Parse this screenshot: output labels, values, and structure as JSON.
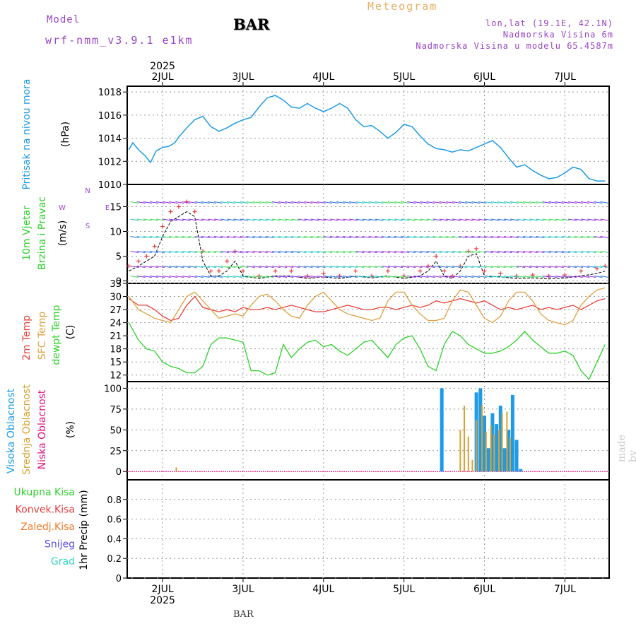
{
  "header": {
    "model_label": "Model",
    "run_label": "wrf-nmm_v3.9.1 e1km",
    "station": "BAR",
    "title": "Meteogram",
    "coords": "lon,lat (19.1E, 42.1N)",
    "elevation": "Nadmorska Visina 6m",
    "model_elevation": "Nadmorska Visina u modelu 65.4587m"
  },
  "footer_station": "BAR",
  "watermark": "made by Angel",
  "year_label": "2025",
  "colors": {
    "pressure": "#1e9be6",
    "temp2m": "#e8413c",
    "sfc_temp": "#e0a040",
    "dewpt": "#2ed12a",
    "high_cloud": "#1e9be6",
    "mid_cloud": "#d9a030",
    "low_cloud": "#e0117f",
    "gust": "#e83c3c",
    "wind_black": "#000000"
  },
  "chart_data": [
    {
      "type": "line",
      "name": "pressure",
      "ylabel": [
        "Pritisak na nivou mora",
        "(hPa)"
      ],
      "ylim": [
        1010,
        1018.5
      ],
      "yticks": [
        1010,
        1012,
        1014,
        1016,
        1018
      ],
      "x_days": [
        1.58,
        1.63,
        1.7,
        1.78,
        1.85,
        1.92,
        2.0,
        2.08,
        2.15,
        2.2,
        2.3,
        2.4,
        2.5,
        2.6,
        2.7,
        2.8,
        2.9,
        3.0,
        3.1,
        3.2,
        3.3,
        3.4,
        3.5,
        3.6,
        3.7,
        3.8,
        3.9,
        4.0,
        4.1,
        4.2,
        4.3,
        4.4,
        4.5,
        4.6,
        4.7,
        4.8,
        4.9,
        5.0,
        5.1,
        5.2,
        5.3,
        5.4,
        5.5,
        5.6,
        5.7,
        5.8,
        5.9,
        6.0,
        6.1,
        6.2,
        6.3,
        6.4,
        6.5,
        6.6,
        6.7,
        6.8,
        6.9,
        7.0,
        7.1,
        7.2,
        7.3,
        7.4,
        7.5
      ],
      "values": [
        1013.0,
        1013.6,
        1013.0,
        1012.5,
        1011.9,
        1012.9,
        1013.2,
        1013.3,
        1013.6,
        1014.1,
        1014.9,
        1015.6,
        1015.9,
        1015.0,
        1014.6,
        1014.9,
        1015.3,
        1015.6,
        1015.8,
        1016.7,
        1017.5,
        1017.7,
        1017.3,
        1016.7,
        1016.6,
        1017.0,
        1016.6,
        1016.3,
        1016.6,
        1017.0,
        1016.6,
        1015.6,
        1015.0,
        1015.1,
        1014.6,
        1014.0,
        1014.5,
        1015.2,
        1015.0,
        1014.2,
        1013.5,
        1013.1,
        1013.0,
        1012.8,
        1013.0,
        1012.9,
        1013.2,
        1013.5,
        1013.8,
        1013.2,
        1012.3,
        1011.5,
        1011.7,
        1011.2,
        1010.8,
        1010.5,
        1010.6,
        1011.0,
        1011.5,
        1011.3,
        1010.5,
        1010.3,
        1010.3
      ]
    },
    {
      "type": "line",
      "name": "wind",
      "ylabel": [
        "10m Vjetar",
        "Brzina i Pravac",
        "(m/s)"
      ],
      "compass": [
        "N",
        "E",
        "S",
        "W"
      ],
      "ylim": [
        -0.5,
        19.5
      ],
      "yticks": [
        0,
        5,
        10,
        15
      ],
      "series": [
        {
          "name": "speed",
          "x": [
            1.58,
            1.7,
            1.8,
            1.9,
            2.0,
            2.1,
            2.2,
            2.3,
            2.4,
            2.5,
            2.6,
            2.7,
            2.8,
            2.9,
            3.0,
            3.2,
            3.4,
            3.6,
            3.8,
            4.0,
            4.2,
            4.4,
            4.6,
            4.8,
            5.0,
            5.2,
            5.3,
            5.4,
            5.5,
            5.6,
            5.7,
            5.8,
            5.9,
            6.0,
            6.2,
            6.4,
            6.6,
            6.8,
            7.0,
            7.2,
            7.4,
            7.5
          ],
          "values": [
            2,
            3,
            4,
            5,
            9,
            12,
            13,
            14,
            13,
            4,
            1,
            1,
            2,
            4,
            1,
            0.5,
            1,
            1,
            0.5,
            0.8,
            0.5,
            1,
            0.6,
            1,
            0.5,
            1,
            2,
            4,
            1,
            0.5,
            2,
            5,
            5.5,
            1,
            0.8,
            0.5,
            0.6,
            0.4,
            0.6,
            1,
            1.5,
            2
          ]
        },
        {
          "name": "gust",
          "x": [
            1.58,
            1.7,
            1.8,
            1.9,
            2.0,
            2.1,
            2.2,
            2.3,
            2.4,
            2.5,
            2.6,
            2.7,
            2.8,
            2.9,
            3.0,
            3.2,
            3.4,
            3.6,
            3.8,
            4.0,
            4.2,
            4.4,
            4.6,
            4.8,
            5.0,
            5.2,
            5.3,
            5.4,
            5.5,
            5.6,
            5.7,
            5.8,
            5.9,
            6.0,
            6.2,
            6.4,
            6.6,
            6.8,
            7.0,
            7.2,
            7.4,
            7.5
          ],
          "values": [
            3,
            4,
            5,
            7,
            11,
            14,
            15,
            16,
            14,
            6,
            2,
            2,
            4,
            6,
            2,
            1,
            2,
            2,
            1,
            1.5,
            1,
            2,
            1,
            2,
            1,
            2,
            3,
            5,
            2,
            1,
            3,
            6,
            6.5,
            2,
            1.5,
            1,
            1.2,
            1,
            1.2,
            2,
            2.5,
            3
          ]
        }
      ]
    },
    {
      "type": "line",
      "name": "temperature",
      "ylabel": [
        "2m Temp",
        "SFC Temp",
        "dewpt Temp",
        "(C)"
      ],
      "ylim": [
        10.5,
        33
      ],
      "yticks": [
        12,
        15,
        18,
        21,
        24,
        27,
        30,
        33
      ],
      "x_days": [
        1.58,
        1.7,
        1.8,
        1.9,
        2.0,
        2.1,
        2.2,
        2.3,
        2.4,
        2.5,
        2.6,
        2.7,
        2.8,
        2.9,
        3.0,
        3.1,
        3.2,
        3.3,
        3.4,
        3.5,
        3.6,
        3.7,
        3.8,
        3.9,
        4.0,
        4.1,
        4.2,
        4.3,
        4.4,
        4.5,
        4.6,
        4.7,
        4.8,
        4.9,
        5.0,
        5.1,
        5.2,
        5.3,
        5.4,
        5.5,
        5.6,
        5.7,
        5.8,
        5.9,
        6.0,
        6.1,
        6.2,
        6.3,
        6.4,
        6.5,
        6.6,
        6.7,
        6.8,
        6.9,
        7.0,
        7.1,
        7.2,
        7.3,
        7.4,
        7.5
      ],
      "series": [
        {
          "name": "2m Temp",
          "values": [
            29.5,
            28,
            28,
            27,
            25.5,
            24.5,
            25,
            28,
            30,
            27.5,
            27,
            26.5,
            27,
            26.5,
            27.5,
            27,
            27,
            27.5,
            27,
            27.5,
            28,
            27.5,
            27,
            26.5,
            26.5,
            27,
            27.5,
            28,
            27.5,
            27,
            27,
            27.5,
            27.5,
            27,
            27.5,
            28,
            27.5,
            28,
            29,
            28.5,
            29,
            29.5,
            29,
            28.5,
            29,
            28,
            27,
            27.5,
            27,
            27.5,
            28,
            27,
            27.5,
            27,
            27.5,
            28,
            27,
            28,
            29,
            29.5
          ]
        },
        {
          "name": "SFC Temp",
          "values": [
            30,
            27,
            26,
            25,
            24.5,
            24,
            27,
            30,
            31,
            29,
            27,
            25,
            25.5,
            26,
            25.5,
            28,
            30,
            30.5,
            29,
            27,
            25.5,
            25,
            28,
            30,
            31,
            29,
            27,
            26,
            25.5,
            25,
            24.5,
            25,
            29,
            31,
            31,
            28,
            26,
            24.5,
            24.5,
            25,
            29,
            31.5,
            31,
            28,
            25,
            24,
            25.5,
            29,
            31,
            31,
            29,
            26,
            24.5,
            24,
            23.5,
            24.5,
            28,
            30,
            31.5,
            32
          ]
        },
        {
          "name": "dewpt Temp",
          "values": [
            24,
            20,
            18,
            17.5,
            15,
            14,
            13.5,
            12.5,
            12.5,
            14,
            19,
            20.5,
            20.5,
            20,
            19.5,
            13,
            13,
            12,
            12.5,
            19,
            16,
            18,
            19.5,
            20,
            18.5,
            19,
            17.5,
            16.5,
            18,
            19.5,
            20,
            18,
            16,
            19,
            20.5,
            21,
            18,
            14,
            13,
            19,
            22,
            21,
            19,
            18,
            17,
            17,
            17.5,
            18.5,
            20,
            22,
            20,
            18.5,
            17,
            17,
            17.5,
            16.5,
            13,
            11,
            15,
            19
          ]
        }
      ]
    },
    {
      "type": "bar",
      "name": "cloud",
      "ylabel": [
        "Visoka Oblacnost",
        "Srednja Oblacnost",
        "Niska Oblacnost",
        "(%)"
      ],
      "ylim": [
        -10,
        108
      ],
      "yticks": [
        0,
        25,
        50,
        75,
        100
      ],
      "series": [
        {
          "name": "Visoka Oblacnost",
          "x": [
            5.47,
            5.9,
            5.95,
            6.0,
            6.05,
            6.1,
            6.15,
            6.2,
            6.25,
            6.3,
            6.35,
            6.4,
            6.45
          ],
          "values": [
            100,
            95,
            100,
            67,
            28,
            70,
            57,
            79,
            28,
            50,
            92,
            38,
            3
          ]
        },
        {
          "name": "Srednja Oblacnost",
          "x": [
            2.17,
            5.7,
            5.75,
            5.8,
            5.85,
            5.9,
            5.97,
            6.02,
            6.08,
            6.12,
            6.18,
            6.22,
            6.28,
            6.32
          ],
          "values": [
            5,
            50,
            79,
            42,
            14,
            62,
            80,
            48,
            55,
            45,
            50,
            70,
            72,
            40
          ]
        },
        {
          "name": "Niska Oblacnost",
          "x": [],
          "values": []
        }
      ]
    },
    {
      "type": "bar",
      "name": "precip",
      "ylabel": [
        "1hr Precip (mm)"
      ],
      "legend": [
        "Ukupna Kisa",
        "Konvek.Kisa",
        "Zaledj.Kisa",
        "Snijeg",
        "Grad"
      ],
      "ylim": [
        0,
        1.0
      ],
      "yticks": [
        0,
        0.2,
        0.4,
        0.6,
        0.8
      ],
      "series": [
        {
          "name": "Ukupna Kisa",
          "values": []
        },
        {
          "name": "Konvek.Kisa",
          "values": []
        },
        {
          "name": "Zaledj.Kisa",
          "values": []
        },
        {
          "name": "Snijeg",
          "values": []
        },
        {
          "name": "Grad",
          "values": []
        }
      ]
    }
  ],
  "x_axis": {
    "day_range": [
      1.56,
      7.55
    ],
    "day_values": [
      2,
      3,
      4,
      5,
      6,
      7
    ],
    "day_labels": [
      "2JUL",
      "3JUL",
      "4JUL",
      "5JUL",
      "6JUL",
      "7JUL"
    ]
  }
}
